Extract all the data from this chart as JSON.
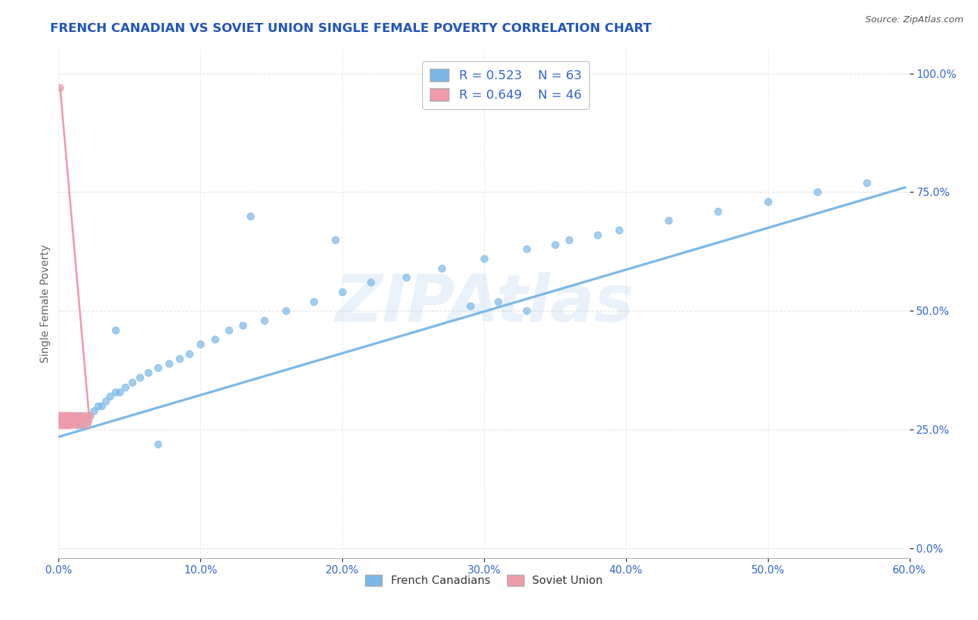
{
  "title": "FRENCH CANADIAN VS SOVIET UNION SINGLE FEMALE POVERTY CORRELATION CHART",
  "source": "Source: ZipAtlas.com",
  "xlabel_ticks": [
    "0.0%",
    "10.0%",
    "20.0%",
    "30.0%",
    "40.0%",
    "50.0%",
    "60.0%"
  ],
  "ylabel_right_ticks": [
    "100.0%",
    "75.0%",
    "50.0%",
    "25.0%",
    "0.0%"
  ],
  "ylabel_right_vals": [
    1.0,
    0.75,
    0.5,
    0.25,
    0.0
  ],
  "xlim": [
    0.0,
    0.6
  ],
  "ylim": [
    -0.02,
    1.05
  ],
  "ylabel_label": "Single Female Poverty",
  "legend_blue_label": "French Canadians",
  "legend_pink_label": "Soviet Union",
  "R_blue": "R = 0.523",
  "N_blue": "N = 63",
  "R_pink": "R = 0.649",
  "N_pink": "N = 46",
  "blue_color": "#7BB8E8",
  "pink_color": "#F09AAA",
  "title_color": "#2255BB",
  "axis_label_color": "#3366CC",
  "watermark": "ZIPAtlas",
  "blue_scatter_x": [
    0.001,
    0.002,
    0.003,
    0.004,
    0.005,
    0.006,
    0.007,
    0.008,
    0.009,
    0.01,
    0.011,
    0.012,
    0.013,
    0.014,
    0.015,
    0.016,
    0.018,
    0.02,
    0.022,
    0.025,
    0.028,
    0.03,
    0.033,
    0.036,
    0.04,
    0.043,
    0.047,
    0.052,
    0.057,
    0.063,
    0.07,
    0.078,
    0.085,
    0.092,
    0.1,
    0.11,
    0.12,
    0.13,
    0.145,
    0.16,
    0.18,
    0.2,
    0.22,
    0.245,
    0.27,
    0.3,
    0.33,
    0.36,
    0.395,
    0.43,
    0.465,
    0.5,
    0.535,
    0.57,
    0.29,
    0.31,
    0.35,
    0.38,
    0.04,
    0.33,
    0.195,
    0.135,
    0.07
  ],
  "blue_scatter_y": [
    0.28,
    0.27,
    0.26,
    0.27,
    0.27,
    0.28,
    0.26,
    0.27,
    0.28,
    0.27,
    0.27,
    0.28,
    0.26,
    0.27,
    0.28,
    0.26,
    0.26,
    0.27,
    0.28,
    0.29,
    0.3,
    0.3,
    0.31,
    0.32,
    0.33,
    0.33,
    0.34,
    0.35,
    0.36,
    0.37,
    0.38,
    0.39,
    0.4,
    0.41,
    0.43,
    0.44,
    0.46,
    0.47,
    0.48,
    0.5,
    0.52,
    0.54,
    0.56,
    0.57,
    0.59,
    0.61,
    0.63,
    0.65,
    0.67,
    0.69,
    0.71,
    0.73,
    0.75,
    0.77,
    0.51,
    0.52,
    0.64,
    0.66,
    0.46,
    0.5,
    0.65,
    0.7,
    0.22
  ],
  "pink_scatter_x": [
    0.001,
    0.001,
    0.001,
    0.001,
    0.002,
    0.002,
    0.002,
    0.002,
    0.003,
    0.003,
    0.003,
    0.003,
    0.003,
    0.004,
    0.004,
    0.004,
    0.004,
    0.004,
    0.005,
    0.005,
    0.005,
    0.005,
    0.006,
    0.006,
    0.006,
    0.007,
    0.007,
    0.007,
    0.008,
    0.008,
    0.009,
    0.009,
    0.01,
    0.01,
    0.011,
    0.012,
    0.013,
    0.014,
    0.015,
    0.016,
    0.017,
    0.018,
    0.019,
    0.02,
    0.021,
    0.022
  ],
  "pink_scatter_y": [
    0.97,
    0.27,
    0.28,
    0.26,
    0.27,
    0.28,
    0.26,
    0.27,
    0.27,
    0.28,
    0.26,
    0.27,
    0.28,
    0.27,
    0.26,
    0.28,
    0.27,
    0.28,
    0.27,
    0.26,
    0.28,
    0.27,
    0.27,
    0.26,
    0.28,
    0.27,
    0.26,
    0.28,
    0.27,
    0.26,
    0.27,
    0.28,
    0.26,
    0.27,
    0.28,
    0.27,
    0.26,
    0.28,
    0.27,
    0.26,
    0.28,
    0.27,
    0.28,
    0.26,
    0.27,
    0.28
  ],
  "blue_trendline_x": [
    0.0,
    0.597
  ],
  "blue_trendline_y": [
    0.235,
    0.76
  ],
  "pink_trendline_x": [
    0.001,
    0.022
  ],
  "pink_trendline_y": [
    0.97,
    0.26
  ],
  "grid_color": "#DDDDDD",
  "grid_linestyle": "--",
  "background_color": "#FFFFFF"
}
